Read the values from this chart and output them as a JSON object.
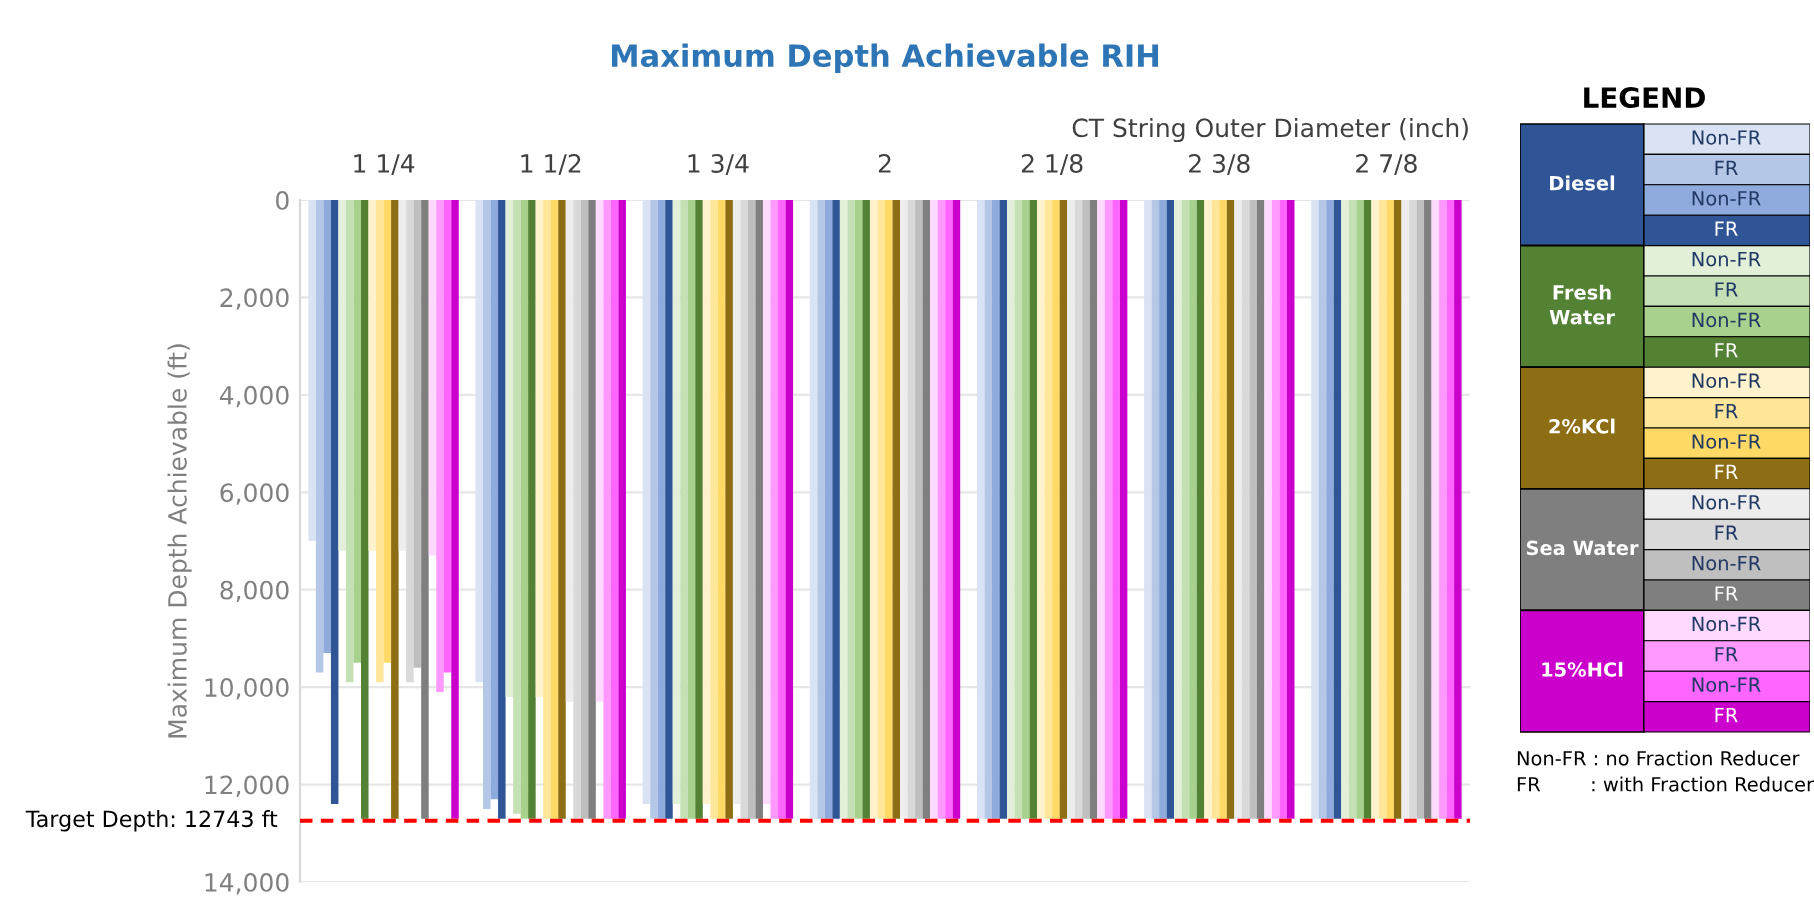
{
  "chart_data": {
    "type": "bar",
    "title": "Maximum Depth Achievable RIH",
    "xlabel": "CT String Outer Diameter (inch)",
    "ylabel": "Maximum Depth Achievable (ft)",
    "categories": [
      "1 1/4",
      "1 1/2",
      "1 3/4",
      "2",
      "2 1/8",
      "2 3/8",
      "2 7/8"
    ],
    "ylim": [
      14000,
      0
    ],
    "yticks": [
      0,
      {
        "value": 2000,
        "label": "2,000"
      },
      {
        "value": 4000,
        "label": "4,000"
      },
      {
        "value": 6000,
        "label": "6,000"
      },
      {
        "value": 8000,
        "label": "8,000"
      },
      {
        "value": 10000,
        "label": "10,000"
      },
      {
        "value": 12000,
        "label": "12,000"
      },
      {
        "value": 14000,
        "label": "14,000"
      }
    ],
    "grid": "y",
    "legend": "right",
    "series": [
      {
        "name": "Non-FR",
        "color": "#dae3f3",
        "values": [
          7000,
          9900,
          12400,
          12700,
          12700,
          12700,
          12700
        ]
      },
      {
        "name": "FR",
        "color": "#b4c7e7",
        "values": [
          9700,
          12500,
          12700,
          12700,
          12700,
          12700,
          12700
        ]
      },
      {
        "name": "Non-FR",
        "color": "#8faadc",
        "values": [
          9300,
          12300,
          12700,
          12700,
          12700,
          12700,
          12700
        ]
      },
      {
        "name": "FR",
        "color": "#2f5597",
        "values": [
          12400,
          12700,
          12700,
          12700,
          12700,
          12700,
          12700
        ]
      },
      {
        "name": "Non-FR",
        "color": "#e2f0d9",
        "values": [
          7200,
          10200,
          12400,
          12700,
          12700,
          12700,
          12700
        ]
      },
      {
        "name": "FR",
        "color": "#c5e0b4",
        "values": [
          9900,
          12600,
          12700,
          12700,
          12700,
          12700,
          12700
        ]
      },
      {
        "name": "Non-FR",
        "color": "#a9d18e",
        "values": [
          9500,
          12700,
          12700,
          12700,
          12700,
          12700,
          12700
        ]
      },
      {
        "name": "FR",
        "color": "#548235",
        "values": [
          12700,
          12700,
          12700,
          12700,
          12700,
          12700,
          12700
        ]
      },
      {
        "name": "Non-FR",
        "color": "#fff2cc",
        "values": [
          7200,
          10200,
          12400,
          12700,
          12700,
          12700,
          12700
        ]
      },
      {
        "name": "FR",
        "color": "#ffe699",
        "values": [
          9900,
          12700,
          12700,
          12700,
          12700,
          12700,
          12700
        ]
      },
      {
        "name": "Non-FR",
        "color": "#ffd966",
        "values": [
          9500,
          12700,
          12700,
          12700,
          12700,
          12700,
          12700
        ]
      },
      {
        "name": "FR",
        "color": "#8d6e14",
        "values": [
          12700,
          12700,
          12700,
          12700,
          12700,
          12700,
          12700
        ]
      },
      {
        "name": "Non-FR",
        "color": "#ededed",
        "values": [
          7200,
          10300,
          12400,
          12700,
          12700,
          12700,
          12700
        ]
      },
      {
        "name": "FR",
        "color": "#d9d9d9",
        "values": [
          9900,
          12700,
          12700,
          12700,
          12700,
          12700,
          12700
        ]
      },
      {
        "name": "Non-FR",
        "color": "#bfbfbf",
        "values": [
          9600,
          12700,
          12700,
          12700,
          12700,
          12700,
          12700
        ]
      },
      {
        "name": "FR",
        "color": "#7f7f7f",
        "values": [
          12700,
          12700,
          12700,
          12700,
          12700,
          12700,
          12700
        ]
      },
      {
        "name": "Non-FR",
        "color": "#ffd9ff",
        "values": [
          7300,
          10300,
          12400,
          12700,
          12700,
          12700,
          12700
        ]
      },
      {
        "name": "FR",
        "color": "#ff99ff",
        "values": [
          10100,
          12700,
          12700,
          12700,
          12700,
          12700,
          12700
        ]
      },
      {
        "name": "Non-FR",
        "color": "#ff66ff",
        "values": [
          9700,
          12700,
          12700,
          12700,
          12700,
          12700,
          12700
        ]
      },
      {
        "name": "FR",
        "color": "#cc00cc",
        "values": [
          12700,
          12700,
          12700,
          12700,
          12700,
          12700,
          12700
        ]
      }
    ],
    "ref_lines": [
      {
        "axis": "y",
        "value": 12743,
        "label": "Target Depth: 12743 ft",
        "color": "#ff0000",
        "line_style": "dashed"
      }
    ],
    "annotations": [
      "LEGEND",
      "Diesel",
      "Fresh Water",
      "2%KCl",
      "Sea Water",
      "15%HCl",
      "Non-FR : no Fraction Reducer",
      "FR        : with Fraction Reducer"
    ]
  }
}
